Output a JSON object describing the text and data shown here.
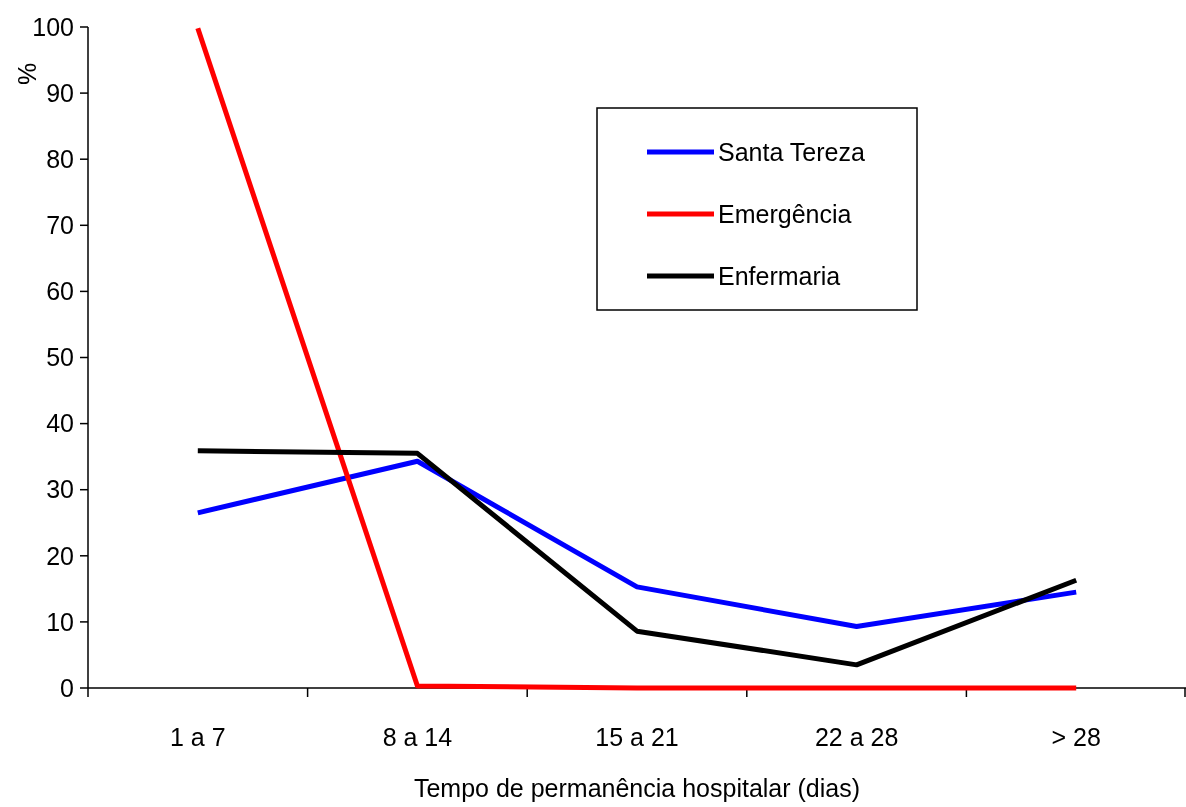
{
  "chart_data": {
    "type": "line",
    "xlabel": "Tempo de permanência hospitalar (dias)",
    "ylabel": "%",
    "categories": [
      "1 a 7",
      "8 a 14",
      "15 a 21",
      "22 a 28",
      "> 28"
    ],
    "ylim": [
      0,
      100
    ],
    "yticks": [
      0,
      10,
      20,
      30,
      40,
      50,
      60,
      70,
      80,
      90,
      100
    ],
    "grid": false,
    "legend": "top right",
    "marker": "none",
    "line_style": "solid",
    "series": [
      {
        "name": "Santa Tereza",
        "color": "#0000ff",
        "values": [
          26.5,
          34.3,
          15.3,
          9.3,
          14.5
        ]
      },
      {
        "name": "Emergência",
        "color": "#ff0000",
        "values": [
          99.8,
          0.3,
          0,
          0,
          0
        ]
      },
      {
        "name": "Enfermaria",
        "color": "#000000",
        "values": [
          35.9,
          35.5,
          8.6,
          3.5,
          16.3
        ]
      }
    ]
  }
}
